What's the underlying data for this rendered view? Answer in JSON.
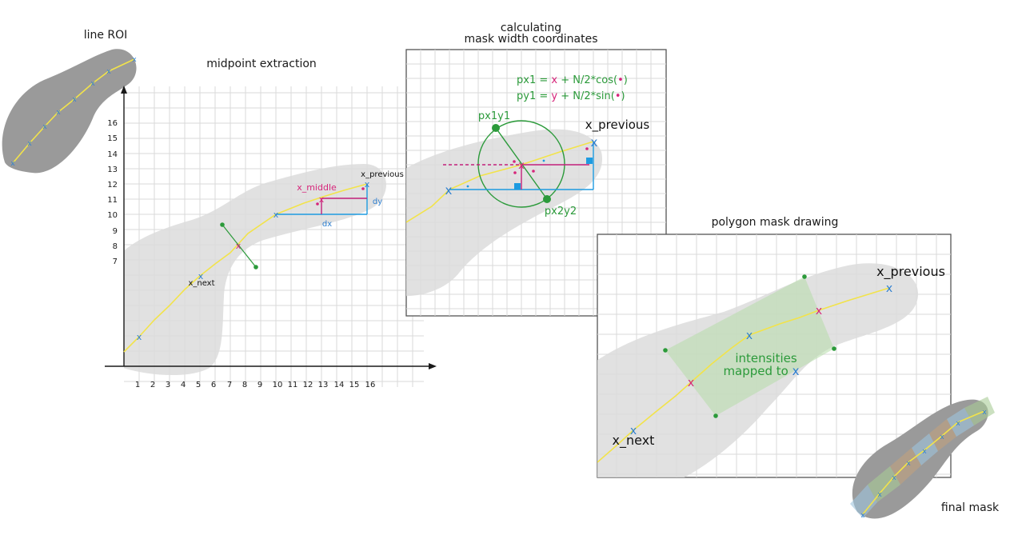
{
  "titles": {
    "line_roi": "line ROI",
    "midpoint": "midpoint extraction",
    "calc_line1": "calculating",
    "calc_line2": "mask width coordinates",
    "polygon": "polygon mask drawing",
    "final": "final mask"
  },
  "midpoint_panel": {
    "x_ticks": [
      "1",
      "2",
      "3",
      "4",
      "5",
      "6",
      "7",
      "8",
      "9",
      "10",
      "11",
      "12",
      "13",
      "14",
      "15",
      "16"
    ],
    "y_ticks": [
      "7",
      "8",
      "9",
      "10",
      "11",
      "12",
      "13",
      "14",
      "15",
      "16"
    ],
    "x_next": "x_next",
    "x_middle": "x_middle",
    "x_previous": "x_previous",
    "dx": "dx",
    "dy": "dy",
    "marker": "x"
  },
  "calc_panel": {
    "eq1_lhs": "px1 = ",
    "eq1_var": "x",
    "eq1_rhs": " + N/2*cos(",
    "eq2_lhs": "py1 = ",
    "eq2_var": "y",
    "eq2_rhs": " + N/2*sin(",
    "eq_dot": "•",
    "eq_close": ")",
    "px1y1": "px1y1",
    "px2y2": "px2y2",
    "x_previous": "x_previous"
  },
  "polygon_panel": {
    "x_previous": "x_previous",
    "x_next": "x_next",
    "intensities_line1": "intensities",
    "intensities_line2": "mapped to",
    "intensities_x": "x"
  },
  "colors": {
    "yellow_line": "#f2e34a",
    "blue_marker": "#2e7fd0",
    "magenta_marker": "#d6257a",
    "green": "#2b9a3a",
    "cyan_lines": "#1e9be0",
    "roi_dark": "#9a9a9a",
    "roi_light": "#dcdcdc"
  }
}
